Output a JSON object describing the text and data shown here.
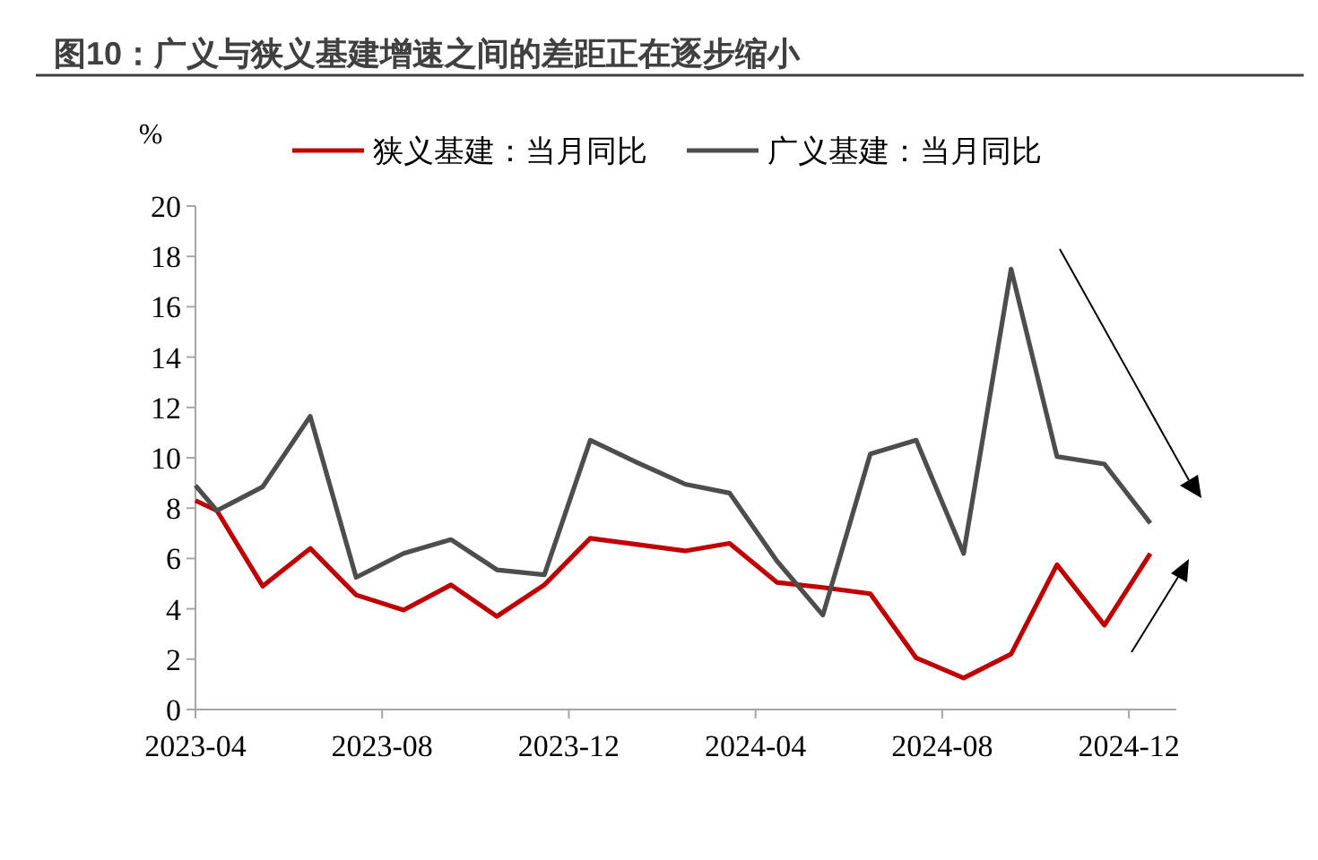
{
  "chart_data": {
    "type": "line",
    "title": "图10：广义与狭义基建增速之间的差距正在逐步缩小",
    "ylabel": "%",
    "x": [
      "2023-04-01",
      "2023-04-15",
      "2023-05-15",
      "2023-06-15",
      "2023-07-15",
      "2023-08-15",
      "2023-09-15",
      "2023-10-15",
      "2023-11-15",
      "2023-12-15",
      "2024-01-15",
      "2024-02-15",
      "2024-03-15",
      "2024-04-15",
      "2024-05-15",
      "2024-06-15",
      "2024-07-15",
      "2024-08-15",
      "2024-09-15",
      "2024-10-15",
      "2024-11-15",
      "2024-12-15"
    ],
    "series": [
      {
        "name": "狭义基建：当月同比",
        "color": "#c00000",
        "values": [
          8.3,
          7.9,
          4.9,
          6.4,
          4.55,
          3.95,
          4.95,
          3.7,
          4.95,
          6.8,
          6.55,
          6.3,
          6.6,
          5.05,
          4.85,
          4.6,
          2.05,
          1.25,
          2.2,
          5.75,
          3.35,
          6.2
        ]
      },
      {
        "name": "广义基建：当月同比",
        "color": "#4d4d4d",
        "values": [
          8.9,
          7.9,
          8.85,
          11.65,
          5.25,
          6.2,
          6.75,
          5.55,
          5.35,
          10.7,
          9.8,
          8.95,
          8.6,
          5.9,
          3.75,
          10.15,
          10.7,
          6.2,
          17.5,
          10.05,
          9.75,
          7.4
        ]
      }
    ],
    "xlim": [
      "2023-04-01",
      "2025-01-01"
    ],
    "xticks": [
      {
        "value": "2023-04-01",
        "label": "2023-04"
      },
      {
        "value": "2023-08-01",
        "label": "2023-08"
      },
      {
        "value": "2023-12-01",
        "label": "2023-12"
      },
      {
        "value": "2024-04-01",
        "label": "2024-04"
      },
      {
        "value": "2024-08-01",
        "label": "2024-08"
      },
      {
        "value": "2024-12-01",
        "label": "2024-12"
      }
    ],
    "ylim": [
      0,
      20
    ],
    "yticks": [
      0,
      2,
      4,
      6,
      8,
      10,
      12,
      14,
      16,
      18,
      20
    ],
    "legend": "top",
    "grid": false,
    "marker": "none",
    "line_style": "solid"
  }
}
